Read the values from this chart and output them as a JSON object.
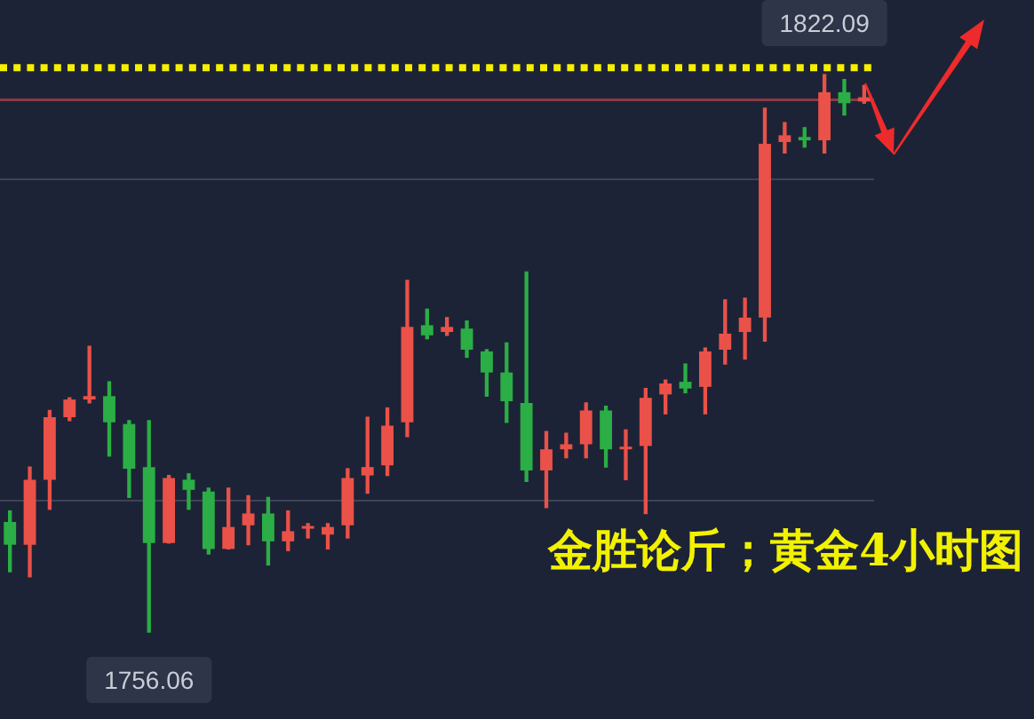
{
  "chart_data": {
    "type": "candlestick",
    "categories": [
      null,
      null,
      null,
      null,
      null,
      null,
      null,
      null,
      null,
      null,
      null,
      null,
      null,
      null,
      null,
      null,
      null,
      null,
      null,
      null,
      null,
      null,
      null,
      null,
      null,
      null,
      null,
      null,
      null,
      null,
      null,
      null,
      null,
      null,
      null,
      null,
      null,
      null,
      null,
      null,
      null,
      null,
      null,
      null
    ],
    "ohlc": [
      [
        1769.1,
        1770.4,
        1763.2,
        1766.4
      ],
      [
        1766.4,
        1775.6,
        1762.6,
        1774.1
      ],
      [
        1774.1,
        1782.3,
        1770.6,
        1781.5
      ],
      [
        1781.5,
        1783.8,
        1781.1,
        1783.6
      ],
      [
        1783.6,
        1789.9,
        1783.2,
        1784.0
      ],
      [
        1784.0,
        1785.7,
        1776.9,
        1780.9
      ],
      [
        1780.7,
        1781.1,
        1772.0,
        1775.4
      ],
      [
        1775.6,
        1781.1,
        1756.06,
        1766.6
      ],
      [
        1766.6,
        1774.6,
        1766.6,
        1774.3
      ],
      [
        1774.1,
        1774.8,
        1770.6,
        1772.9
      ],
      [
        1772.7,
        1773.1,
        1765.3,
        1765.9
      ],
      [
        1765.9,
        1773.1,
        1765.9,
        1768.5
      ],
      [
        1768.7,
        1772.2,
        1766.4,
        1770.1
      ],
      [
        1770.1,
        1772.0,
        1764.0,
        1766.8
      ],
      [
        1766.8,
        1770.4,
        1765.7,
        1768.0
      ],
      [
        1768.3,
        1768.9,
        1767.2,
        1768.5
      ],
      [
        1767.6,
        1768.9,
        1765.9,
        1768.5
      ],
      [
        1768.7,
        1775.4,
        1767.2,
        1774.3
      ],
      [
        1774.6,
        1781.5,
        1772.5,
        1775.6
      ],
      [
        1775.8,
        1782.6,
        1774.6,
        1780.5
      ],
      [
        1780.9,
        1797.7,
        1779.2,
        1792.2
      ],
      [
        1792.4,
        1794.3,
        1790.8,
        1791.2
      ],
      [
        1791.6,
        1793.3,
        1791.2,
        1792.2
      ],
      [
        1792.0,
        1792.9,
        1788.6,
        1789.5
      ],
      [
        1789.3,
        1789.5,
        1784.0,
        1786.8
      ],
      [
        1786.8,
        1790.3,
        1780.9,
        1783.4
      ],
      [
        1783.2,
        1798.7,
        1773.9,
        1775.2
      ],
      [
        1775.2,
        1779.8,
        1770.8,
        1777.7
      ],
      [
        1777.7,
        1779.6,
        1776.7,
        1778.3
      ],
      [
        1778.3,
        1783.2,
        1776.7,
        1782.3
      ],
      [
        1782.3,
        1782.8,
        1775.6,
        1777.7
      ],
      [
        1777.7,
        1780.0,
        1774.1,
        1777.9
      ],
      [
        1778.1,
        1784.9,
        1770.1,
        1783.8
      ],
      [
        1784.2,
        1785.9,
        1781.9,
        1785.5
      ],
      [
        1785.7,
        1787.8,
        1784.4,
        1784.9
      ],
      [
        1785.1,
        1789.7,
        1781.9,
        1789.3
      ],
      [
        1789.5,
        1795.4,
        1787.8,
        1791.4
      ],
      [
        1791.6,
        1795.6,
        1788.4,
        1793.3
      ],
      [
        1793.3,
        1818.1,
        1790.5,
        1813.9
      ],
      [
        1814.1,
        1816.4,
        1812.8,
        1814.9
      ],
      [
        1814.7,
        1815.8,
        1813.5,
        1814.3
      ],
      [
        1814.3,
        1822.09,
        1812.8,
        1820.0
      ],
      [
        1820.0,
        1821.5,
        1817.3,
        1818.7
      ],
      [
        1818.9,
        1820.8,
        1818.7,
        1819.4
      ]
    ],
    "colors": [
      "#2bae45",
      "#ea5148",
      "#ea5148",
      "#ea5148",
      "#ea5148",
      "#2bae45",
      "#2bae45",
      "#2bae45",
      "#ea5148",
      "#2bae45",
      "#2bae45",
      "#ea5148",
      "#ea5148",
      "#2bae45",
      "#ea5148",
      "#ea5148",
      "#ea5148",
      "#ea5148",
      "#ea5148",
      "#ea5148",
      "#ea5148",
      "#2bae45",
      "#ea5148",
      "#2bae45",
      "#2bae45",
      "#2bae45",
      "#2bae45",
      "#ea5148",
      "#ea5148",
      "#ea5148",
      "#2bae45",
      "#ea5148",
      "#ea5148",
      "#ea5148",
      "#2bae45",
      "#ea5148",
      "#ea5148",
      "#ea5148",
      "#ea5148",
      "#ea5148",
      "#2bae45",
      "#ea5148",
      "#2bae45",
      "#ea5148"
    ],
    "ref_lines": [
      {
        "axis": "y",
        "value": 1822.9,
        "color": "#f5f000",
        "line_style": "dotted"
      },
      {
        "axis": "y",
        "value": 1819.1,
        "color": "#8b3a44",
        "line_style": "solid"
      }
    ],
    "grid": "y",
    "yticks": [
      {
        "value": 1809.7,
        "label": null
      },
      {
        "value": 1771.6,
        "label": null
      }
    ],
    "tick_labels": false,
    "annotations": [
      {
        "text": "1822.09",
        "y": 1822.09
      },
      {
        "text": "1756.06",
        "y": 1756.06
      },
      "金胜论斤；黄金4小时图"
    ]
  }
}
